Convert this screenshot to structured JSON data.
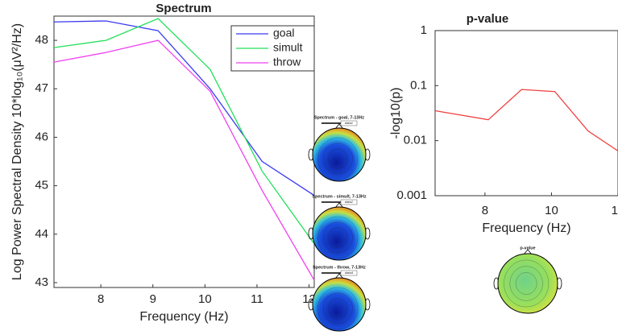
{
  "chart_data": [
    {
      "type": "line",
      "title": "Spectrum",
      "xlabel": "Frequency (Hz)",
      "ylabel": "Log Power Spectral Density 10*log₁₀(μV²/Hz)",
      "x": [
        7.1,
        8.1,
        9.1,
        10.1,
        11.1,
        12.1
      ],
      "series": [
        {
          "name": "goal",
          "color": "#3b3bf0",
          "values": [
            48.38,
            48.4,
            48.2,
            47.0,
            45.5,
            44.8
          ]
        },
        {
          "name": "simult",
          "color": "#22e05a",
          "values": [
            47.85,
            48.0,
            48.45,
            47.4,
            45.3,
            43.8
          ]
        },
        {
          "name": "throw",
          "color": "#f040f0",
          "values": [
            47.55,
            47.75,
            48.0,
            46.95,
            44.9,
            43.05
          ]
        }
      ],
      "xlim": [
        7.1,
        12.1
      ],
      "ylim": [
        42.9,
        48.5
      ],
      "xticks": [
        8,
        9,
        10,
        11,
        12
      ],
      "yticks": [
        43,
        44,
        45,
        46,
        47,
        48
      ],
      "legend": "upper right"
    },
    {
      "type": "line",
      "title": "p-value",
      "xlabel": "Frequency (Hz)",
      "ylabel": "-log10(p)",
      "x": [
        6.5,
        8.1,
        9.1,
        10.1,
        11.1,
        12.0
      ],
      "series": [
        {
          "color": "#f04040",
          "values": [
            0.035,
            0.024,
            0.085,
            0.078,
            0.015,
            0.0065
          ]
        }
      ],
      "xlim": [
        6.5,
        12.0
      ],
      "ylim": [
        0.001,
        1
      ],
      "yscale": "log",
      "xticks": [
        8,
        10,
        12
      ],
      "yticks": [
        0.001,
        0.01,
        0.1,
        1
      ]
    }
  ],
  "topoplots": [
    {
      "title": "Spectrum - goal, 7-13Hz",
      "legend": "data1"
    },
    {
      "title": "Spectrum - simult, 7-13Hz",
      "legend": "data2"
    },
    {
      "title": "Spectrum - throw, 7-13Hz",
      "legend": "data4"
    },
    {
      "title": "p-value"
    }
  ]
}
